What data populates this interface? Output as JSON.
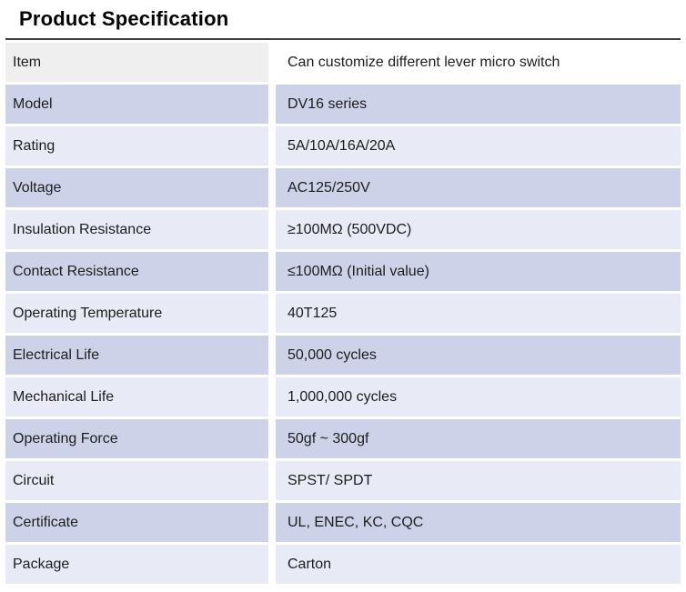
{
  "page": {
    "title": "Product Specification"
  },
  "table": {
    "rows": [
      {
        "label": "Item",
        "value": "Can customize different lever micro switch",
        "variant": "header"
      },
      {
        "label": "Model",
        "value": "DV16 series",
        "variant": "dark"
      },
      {
        "label": "Rating",
        "value": "5A/10A/16A/20A",
        "variant": "light"
      },
      {
        "label": "Voltage",
        "value": "AC125/250V",
        "variant": "dark"
      },
      {
        "label": "Insulation Resistance",
        "value": "≥100MΩ (500VDC)",
        "variant": "light"
      },
      {
        "label": "Contact Resistance",
        "value": "≤100MΩ (Initial value)",
        "variant": "dark"
      },
      {
        "label": "Operating Temperature",
        "value": "40T125",
        "variant": "light"
      },
      {
        "label": "Electrical Life",
        "value": "50,000 cycles",
        "variant": "dark"
      },
      {
        "label": "Mechanical Life",
        "value": "1,000,000 cycles",
        "variant": "light"
      },
      {
        "label": "Operating Force",
        "value": "50gf ~ 300gf",
        "variant": "dark"
      },
      {
        "label": "Circuit",
        "value": "SPST/ SPDT",
        "variant": "light"
      },
      {
        "label": "Certificate",
        "value": "UL, ENEC, KC, CQC",
        "variant": "dark"
      },
      {
        "label": "Package",
        "value": "Carton",
        "variant": "light"
      }
    ]
  },
  "colors": {
    "title": "#000000",
    "text": "#1d1d1d",
    "top_border": "#3d3d3d",
    "row_dark": "#cdd2e8",
    "row_light": "#e8eaf5",
    "header_label_bg": "#efefef",
    "header_value_bg": "#ffffff"
  }
}
